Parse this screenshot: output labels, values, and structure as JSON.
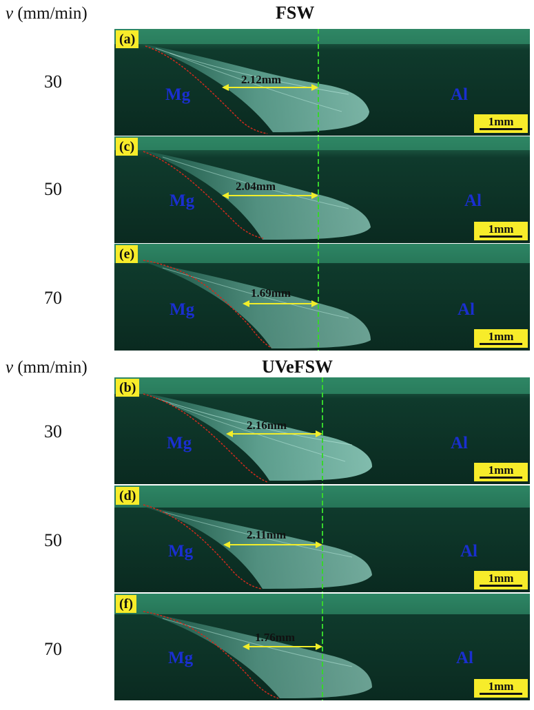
{
  "axis_label": {
    "symbol": "v",
    "unit": "(mm/min)"
  },
  "sections": [
    {
      "title": "FSW",
      "panels": [
        {
          "tag": "(a)",
          "speed": "30",
          "left_material": "Mg",
          "right_material": "Al",
          "dimension": "2.12mm",
          "scale": "1mm"
        },
        {
          "tag": "(c)",
          "speed": "50",
          "left_material": "Mg",
          "right_material": "Al",
          "dimension": "2.04mm",
          "scale": "1mm"
        },
        {
          "tag": "(e)",
          "speed": "70",
          "left_material": "Mg",
          "right_material": "Al",
          "dimension": "1.69mm",
          "scale": "1mm"
        }
      ]
    },
    {
      "title": "UVeFSW",
      "panels": [
        {
          "tag": "(b)",
          "speed": "30",
          "left_material": "Mg",
          "right_material": "Al",
          "dimension": "2.16mm",
          "scale": "1mm"
        },
        {
          "tag": "(d)",
          "speed": "50",
          "left_material": "Mg",
          "right_material": "Al",
          "dimension": "2.11mm",
          "scale": "1mm"
        },
        {
          "tag": "(f)",
          "speed": "70",
          "left_material": "Mg",
          "right_material": "Al",
          "dimension": "1.76mm",
          "scale": "1mm"
        }
      ]
    }
  ],
  "colors": {
    "tag_background": "#f7ec2a",
    "material_label": "#1a2fd0",
    "dimension_arrow": "#f2ee2a",
    "centerline": "#37d52d",
    "boundary_line": "#d02a1c",
    "background": "#0c2a22"
  }
}
